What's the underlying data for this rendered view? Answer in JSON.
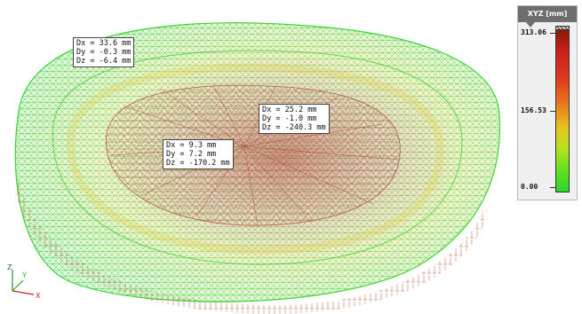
{
  "legend": {
    "title": "XYZ [mm]",
    "max_label": "313.06",
    "mid_label": "156.53",
    "min_label": "0.00",
    "colors": [
      "#8a1a00",
      "#c81e1e",
      "#e8741e",
      "#e6c21e",
      "#6ee01e",
      "#2bd62b"
    ]
  },
  "callouts": [
    {
      "dx": "Dx = 33.6 mm",
      "dy": "Dy = -0.3 mm",
      "dz": "Dz = -6.4 mm"
    },
    {
      "dx": "Dx = 25.2 mm",
      "dy": "Dy = -1.0 mm",
      "dz": "Dz = -240.3 mm"
    },
    {
      "dx": "Dx = 9.3 mm",
      "dy": "Dy = 7.2 mm",
      "dz": "Dz = -170.2 mm"
    }
  ],
  "axes": {
    "z": "Z",
    "y": "Y",
    "x": "X"
  },
  "mesh_colors": {
    "edge": "#2fd02f",
    "mid": "#d9d24a",
    "center": "#a23a2a",
    "support": "#c97b5a"
  }
}
